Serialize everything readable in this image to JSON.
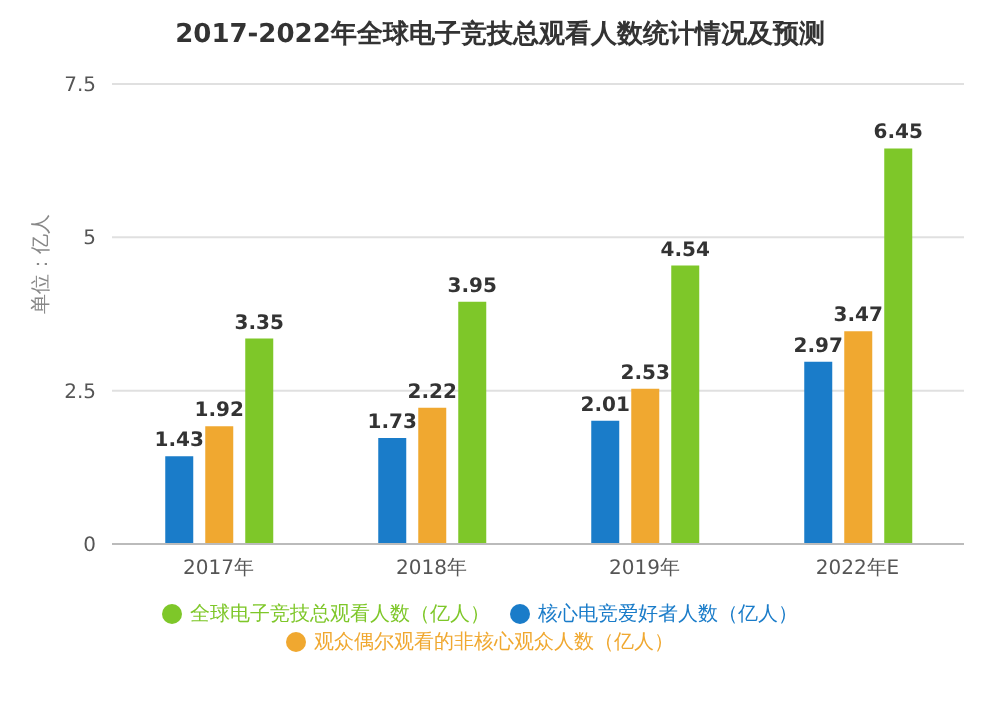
{
  "chart_data": {
    "type": "bar",
    "title": "2017-2022年全球电子竞技总观看人数统计情况及预测",
    "ylabel": "单位：亿人",
    "categories": [
      "2017年",
      "2018年",
      "2019年",
      "2022年E"
    ],
    "series": [
      {
        "name": "核心电竞爱好者人数（亿人）",
        "color": "#1a7cc9",
        "values": [
          1.43,
          1.73,
          2.01,
          2.97
        ]
      },
      {
        "name": "观众偶尔观看的非核心观众人数（亿人）",
        "color": "#f0a830",
        "values": [
          1.92,
          2.22,
          2.53,
          3.47
        ]
      },
      {
        "name": "全球电子竞技总观看人数（亿人）",
        "color": "#7ec729",
        "values": [
          3.35,
          3.95,
          4.54,
          6.45
        ]
      }
    ],
    "ylim": [
      0,
      7.5
    ],
    "yticks": [
      0,
      2.5,
      5,
      7.5
    ],
    "grid": "y",
    "legend": "bottom",
    "data_labels": true
  }
}
